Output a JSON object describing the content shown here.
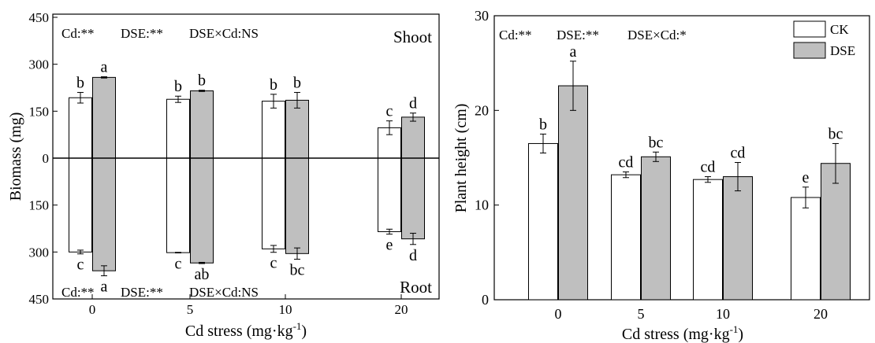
{
  "colors": {
    "ck_fill": "#ffffff",
    "dse_fill": "#bfbfbf",
    "stroke": "#000000"
  },
  "chart_data": [
    {
      "type": "bar",
      "subtype": "butterfly",
      "ylabel": "Biomass (mg)",
      "xlabel": "Cd stress (mg·kg",
      "xlabel_sup": "-1",
      "xlabel_close": ")",
      "categories": [
        "0",
        "5",
        "10",
        "20"
      ],
      "ylim": [
        -450,
        450
      ],
      "yticks": [
        -450,
        -300,
        -150,
        0,
        150,
        300,
        450
      ],
      "ytick_labels": [
        "450",
        "300",
        "150",
        "0",
        "150",
        "300",
        "450"
      ],
      "panel_labels": {
        "top": "Shoot",
        "bottom": "Root"
      },
      "stats": {
        "top": [
          "Cd:**",
          "DSE:**",
          "DSE×Cd:NS"
        ],
        "bottom": [
          "Cd:**",
          "DSE:**",
          "DSE×Cd:NS"
        ]
      },
      "shoot": {
        "series": [
          {
            "name": "CK",
            "values": [
              193,
              188,
              182,
              97
            ],
            "errors": [
              17,
              10,
              22,
              22
            ],
            "letters": [
              "b",
              "b",
              "b",
              "c"
            ]
          },
          {
            "name": "DSE",
            "values": [
              258,
              215,
              185,
              131
            ],
            "errors": [
              2,
              2,
              25,
              13
            ],
            "letters": [
              "a",
              "b",
              "b",
              "d"
            ]
          }
        ]
      },
      "root": {
        "series": [
          {
            "name": "CK",
            "values": [
              300,
              302,
              290,
              235
            ],
            "errors": [
              6,
              1,
              11,
              8
            ],
            "letters": [
              "c",
              "c",
              "c",
              "e"
            ]
          },
          {
            "name": "DSE",
            "values": [
              360,
              335,
              305,
              258
            ],
            "errors": [
              16,
              2,
              18,
              18
            ],
            "letters": [
              "a",
              "ab",
              "bc",
              "d"
            ]
          }
        ]
      }
    },
    {
      "type": "bar",
      "ylabel": "Plant height (cm)",
      "xlabel": "Cd stress (mg·kg",
      "xlabel_sup": "-1",
      "xlabel_close": ")",
      "categories": [
        "0",
        "5",
        "10",
        "20"
      ],
      "ylim": [
        0,
        30
      ],
      "yticks": [
        0,
        10,
        20,
        30
      ],
      "stats": [
        "Cd:**",
        "DSE:**",
        "DSE×Cd:*"
      ],
      "legend": {
        "position": "top-right"
      },
      "series": [
        {
          "name": "CK",
          "values": [
            16.5,
            13.2,
            12.7,
            10.8
          ],
          "errors": [
            1.0,
            0.3,
            0.3,
            1.1
          ],
          "letters": [
            "b",
            "cd",
            "cd",
            "e"
          ]
        },
        {
          "name": "DSE",
          "values": [
            22.6,
            15.1,
            13.0,
            14.4
          ],
          "errors": [
            2.6,
            0.5,
            1.5,
            2.1
          ],
          "letters": [
            "a",
            "bc",
            "cd",
            "bc"
          ]
        }
      ]
    }
  ]
}
